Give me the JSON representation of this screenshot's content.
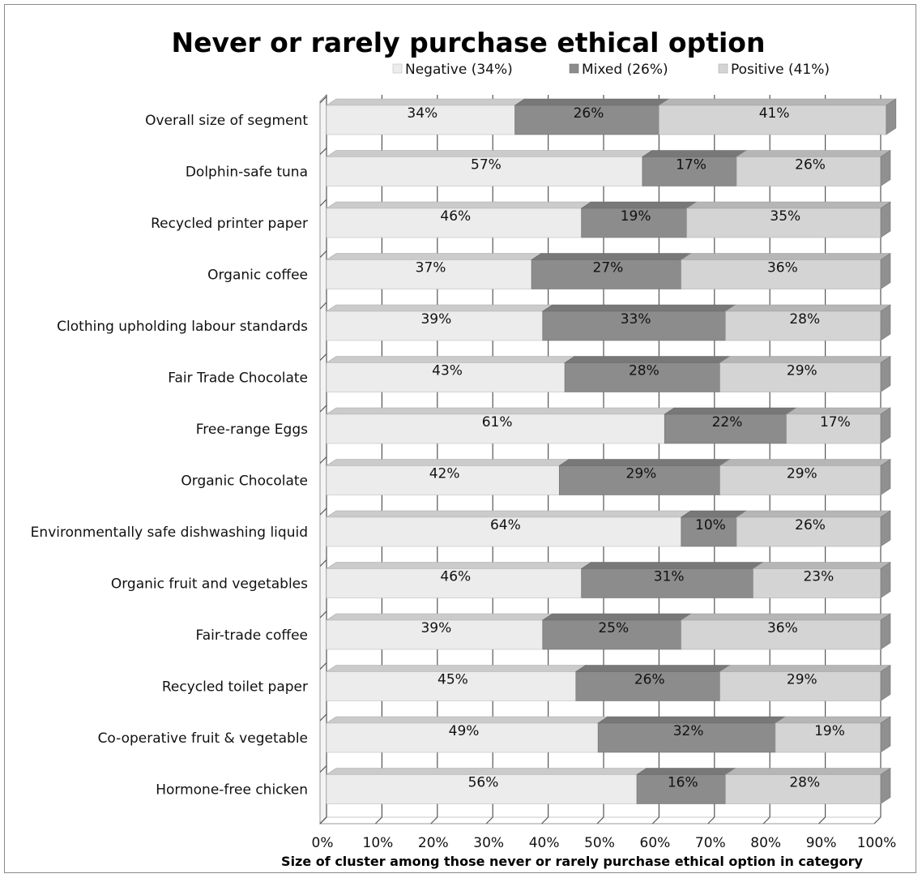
{
  "chart_data": {
    "type": "bar",
    "orientation": "horizontal",
    "stacked": "100%",
    "style": "3d",
    "title": "Never or rarely purchase ethical option",
    "xlabel": "Size of cluster among those never or rarely purchase ethical option in category",
    "ylabel": "",
    "xlim": [
      0,
      100
    ],
    "x_ticks": [
      "0%",
      "10%",
      "20%",
      "30%",
      "40%",
      "50%",
      "60%",
      "70%",
      "80%",
      "90%",
      "100%"
    ],
    "grid": true,
    "legend_position": "top",
    "categories": [
      "Overall size of segment",
      "Dolphin-safe tuna",
      "Recycled printer paper",
      "Organic coffee",
      "Clothing upholding labour standards",
      "Fair Trade Chocolate",
      "Free-range Eggs",
      "Organic Chocolate",
      "Environmentally safe dishwashing liquid",
      "Organic fruit and vegetables",
      "Fair-trade coffee",
      "Recycled toilet paper",
      "Co-operative fruit & vegetable",
      "Hormone-free chicken"
    ],
    "series": [
      {
        "name": "Negative (34%)",
        "color": "#ececec",
        "values": [
          34,
          57,
          46,
          37,
          39,
          43,
          61,
          42,
          64,
          46,
          39,
          45,
          49,
          56
        ],
        "labels": [
          "34%",
          "57%",
          "46%",
          "37%",
          "39%",
          "43%",
          "61%",
          "42%",
          "64%",
          "46%",
          "39%",
          "45%",
          "49%",
          "56%"
        ]
      },
      {
        "name": "Mixed (26%)",
        "color": "#8c8c8c",
        "values": [
          26,
          17,
          19,
          27,
          33,
          28,
          22,
          29,
          10,
          31,
          25,
          26,
          32,
          16
        ],
        "labels": [
          "26%",
          "17%",
          "19%",
          "27%",
          "33%",
          "28%",
          "22%",
          "29%",
          "10%",
          "31%",
          "25%",
          "26%",
          "32%",
          "16%"
        ]
      },
      {
        "name": "Positive (41%)",
        "color": "#d4d4d4",
        "values": [
          41,
          26,
          35,
          36,
          28,
          29,
          17,
          29,
          26,
          23,
          36,
          29,
          19,
          28
        ],
        "labels": [
          "41%",
          "26%",
          "35%",
          "36%",
          "28%",
          "29%",
          "17%",
          "29%",
          "26%",
          "23%",
          "36%",
          "29%",
          "19%",
          "28%"
        ]
      }
    ]
  }
}
